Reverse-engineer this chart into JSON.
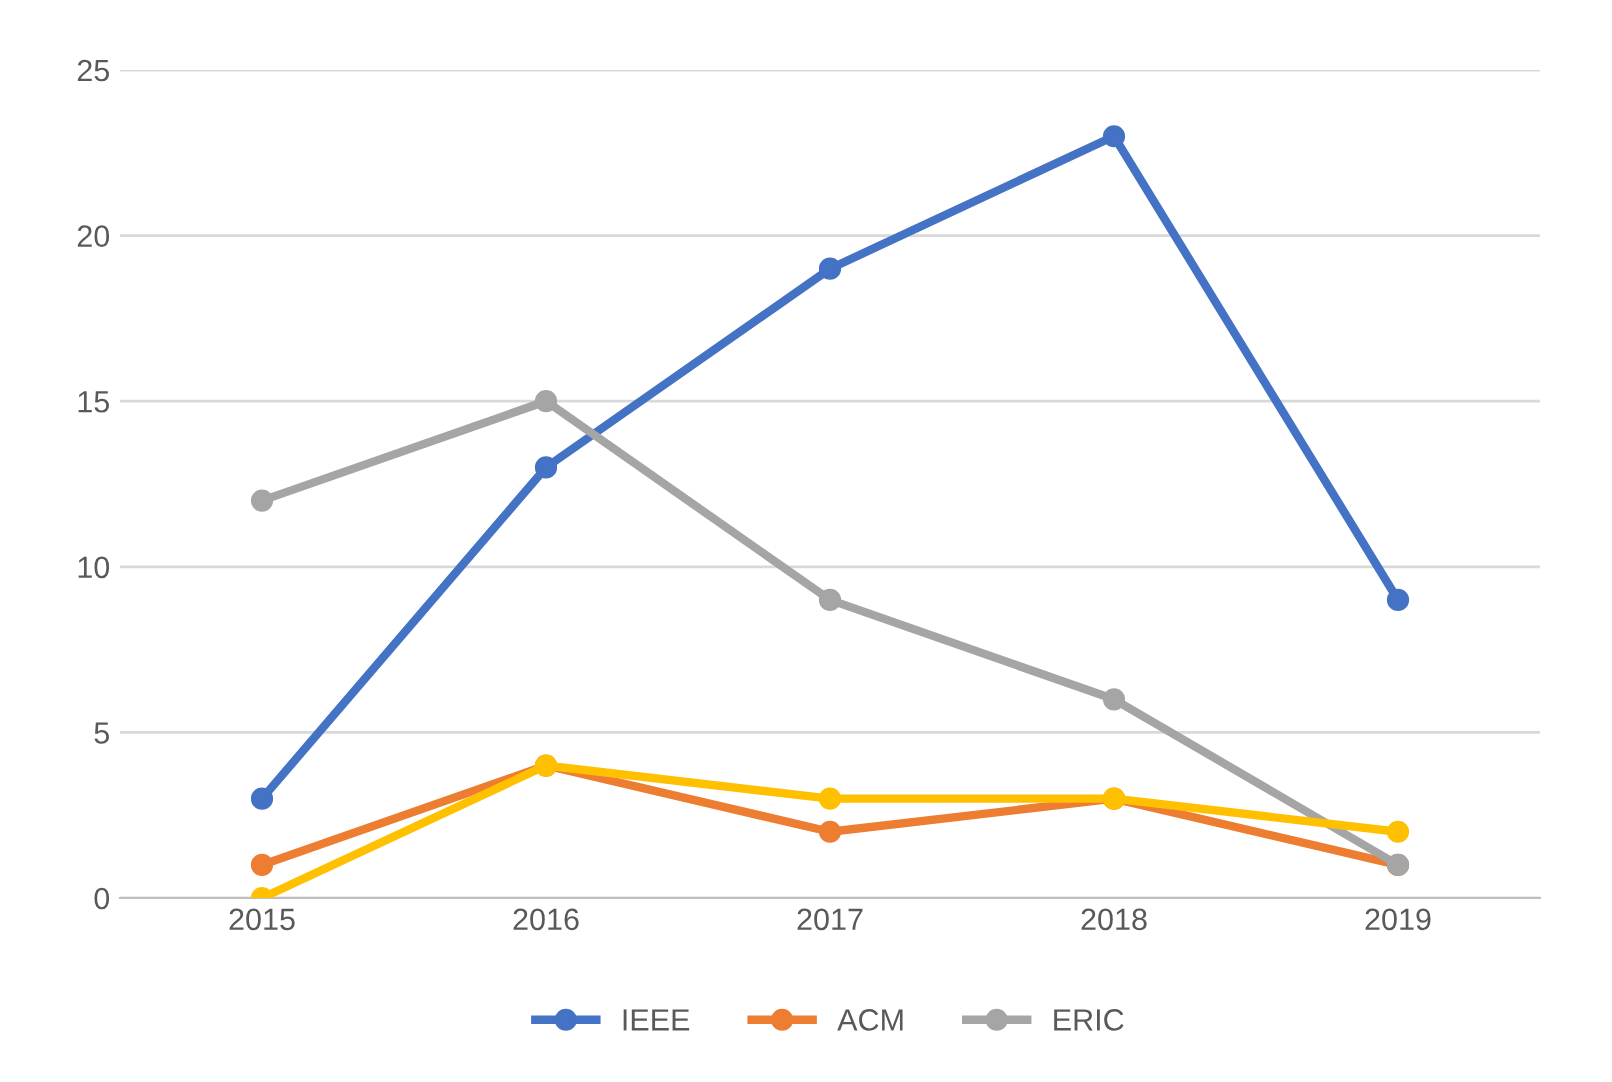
{
  "chart_data": {
    "type": "line",
    "categories": [
      "2015",
      "2016",
      "2017",
      "2018",
      "2019"
    ],
    "series": [
      {
        "name": "IEEE",
        "color": "#4472c4",
        "values": [
          3,
          13,
          19,
          23,
          9
        ]
      },
      {
        "name": "ACM",
        "color": "#ed7d31",
        "values": [
          1,
          4,
          2,
          3,
          1
        ]
      },
      {
        "name": "ERIC",
        "color": "#a5a5a5",
        "values": [
          12,
          15,
          9,
          6,
          1
        ]
      },
      {
        "color": "#ffc000",
        "values": [
          0,
          4,
          3,
          3,
          2
        ]
      }
    ],
    "ylim": [
      0,
      25
    ],
    "yticks": [
      0,
      5,
      10,
      15,
      20,
      25
    ],
    "grid": "y",
    "legend": "bottom",
    "marker": "circle",
    "line_style": "solid"
  }
}
